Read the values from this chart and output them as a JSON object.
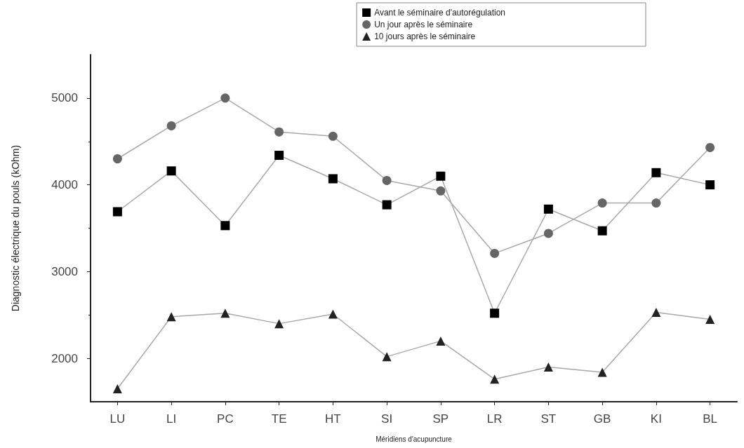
{
  "chart_data": {
    "type": "line",
    "xlabel": "Méridiens d'acupuncture",
    "ylabel": "Diagnostic électrique du pouls (kOhm)",
    "categories": [
      "LU",
      "LI",
      "PC",
      "TE",
      "HT",
      "SI",
      "SP",
      "LR",
      "ST",
      "GB",
      "KI",
      "BL"
    ],
    "series": [
      {
        "name": "Avant le séminaire d'autorégulation",
        "color": "#000000",
        "marker": "square",
        "values": [
          3690,
          4160,
          3530,
          4340,
          4070,
          3770,
          4100,
          2520,
          3720,
          3470,
          4140,
          4000
        ]
      },
      {
        "name": "Un jour après le séminaire",
        "color": "#666666",
        "marker": "circle",
        "values": [
          4300,
          4680,
          5000,
          4610,
          4560,
          4050,
          3930,
          3210,
          3440,
          3790,
          3790,
          4430
        ]
      },
      {
        "name": "10 jours après le séminaire",
        "color": "#222222",
        "marker": "triangle",
        "values": [
          1650,
          2480,
          2520,
          2400,
          2510,
          2020,
          2200,
          1760,
          1900,
          1840,
          2530,
          2450
        ]
      }
    ],
    "ylim": [
      1500,
      5500
    ],
    "yticks": [
      2000,
      3000,
      4000,
      5000
    ],
    "grid": false,
    "legend": "top right",
    "line_style": "solid"
  }
}
